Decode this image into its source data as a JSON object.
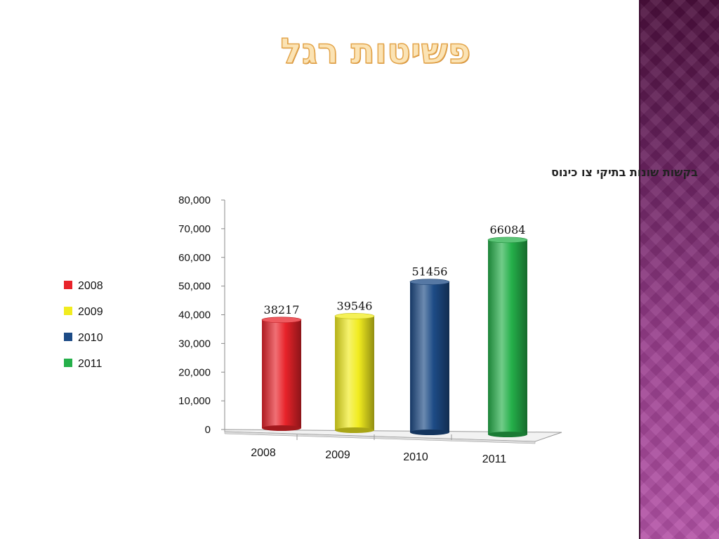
{
  "slide": {
    "title": "פשיטות רגל"
  },
  "colors": {
    "bar_2008": "#e8232a",
    "bar_2009": "#f1ec1f",
    "bar_2010": "#1d4b86",
    "bar_2011": "#25b04a"
  },
  "chart_data": {
    "type": "bar",
    "title": "בקשות שונות בתיקי צו כינוס",
    "categories": [
      "2008",
      "2009",
      "2010",
      "2011"
    ],
    "values": [
      38217,
      39546,
      51456,
      66084
    ],
    "data_labels": [
      "38217",
      "39546",
      "51456",
      "66084"
    ],
    "ylim": [
      0,
      80000
    ],
    "yticks": [
      0,
      10000,
      20000,
      30000,
      40000,
      50000,
      60000,
      70000,
      80000
    ],
    "ytick_labels": [
      "0",
      "10,000",
      "20,000",
      "30,000",
      "40,000",
      "50,000",
      "60,000",
      "70,000",
      "80,000"
    ],
    "legend": {
      "placement": "left",
      "entries": [
        "2008",
        "2009",
        "2010",
        "2011"
      ]
    },
    "grid": false,
    "style": "3d-cylinder"
  }
}
